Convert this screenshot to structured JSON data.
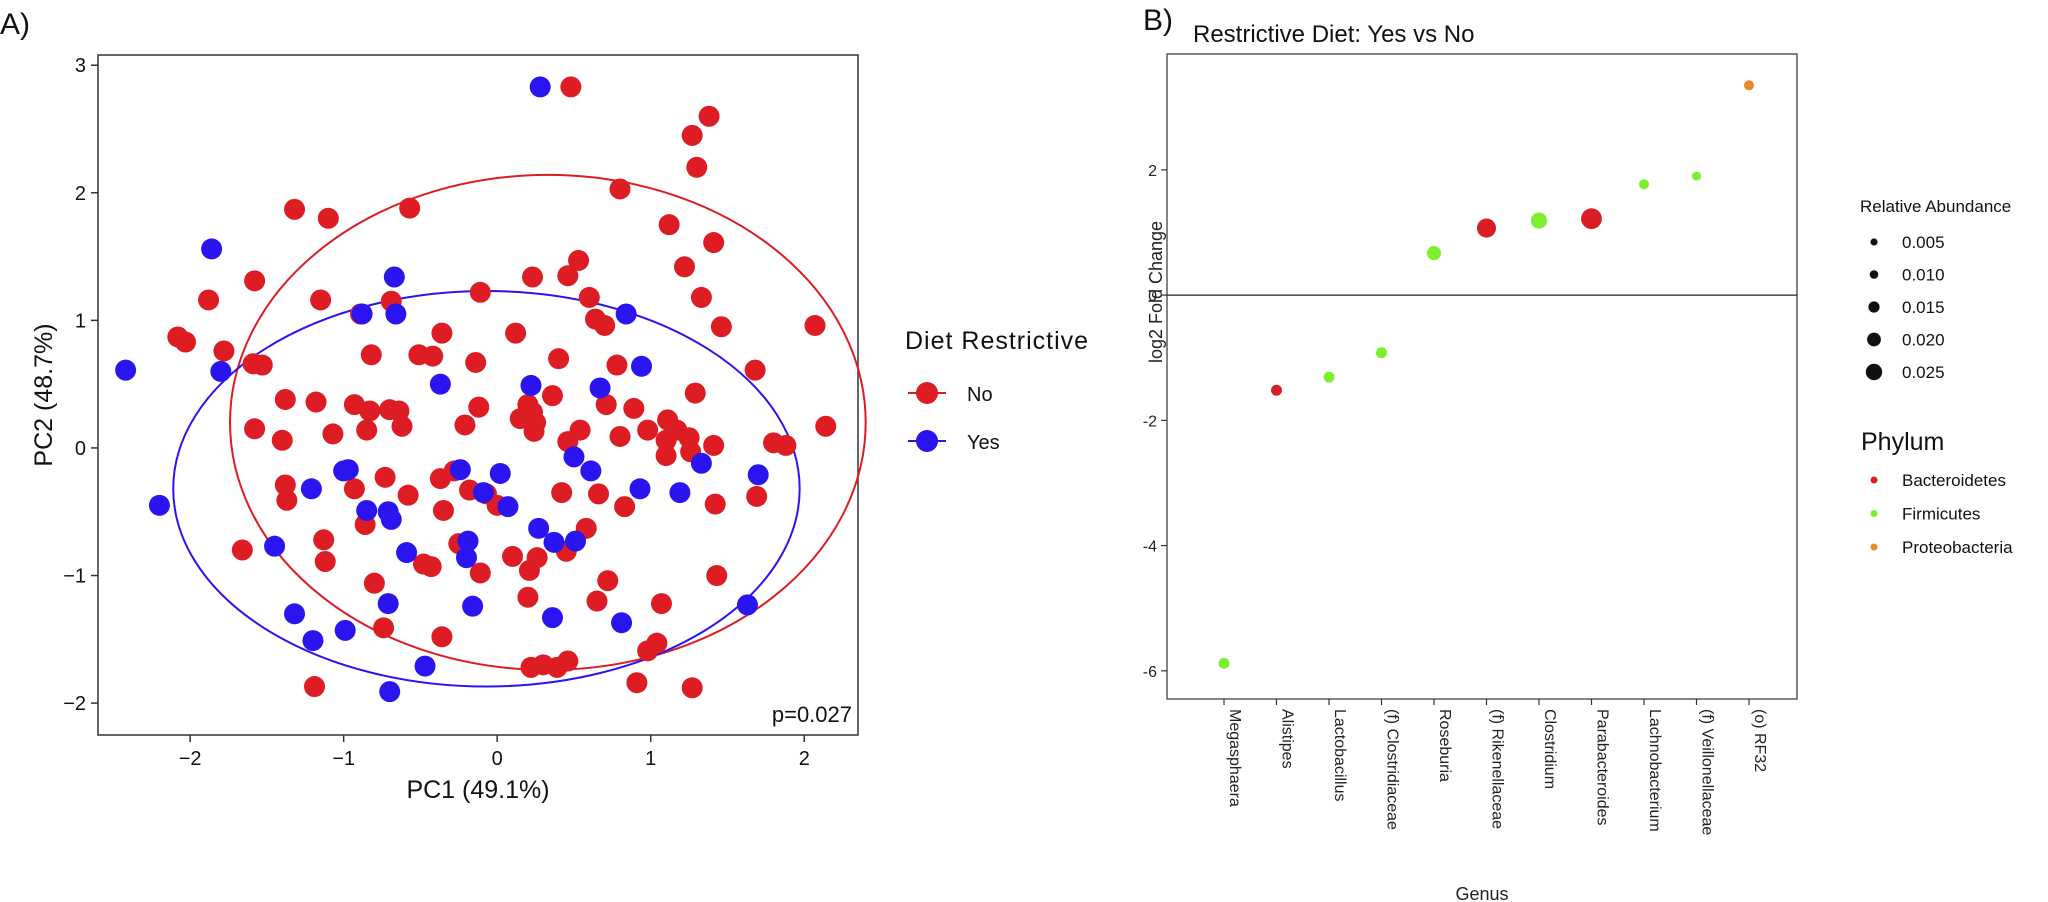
{
  "chart_data": [
    {
      "panel": "A)",
      "type": "scatter",
      "xlabel": "PC1 (49.1%)",
      "ylabel": "PC2 (48.7%)",
      "xlim": [
        -2.6,
        2.35
      ],
      "ylim": [
        -2.25,
        3.08
      ],
      "xticks": [
        -2,
        -1,
        0,
        1,
        2
      ],
      "yticks": [
        -2,
        -1,
        0,
        1,
        2,
        3
      ],
      "annotation": "p=0.027",
      "legend_title": "Diet Restrictive",
      "legend_items": [
        "No",
        "Yes"
      ],
      "colors": {
        "No": "#dd1c24",
        "Yes": "#2a14f0"
      },
      "ellipses": [
        {
          "group": "No",
          "cx": 0.33,
          "cy": 0.2,
          "rx": 2.07,
          "ry": 1.94
        },
        {
          "group": "Yes",
          "cx": -0.07,
          "cy": -0.32,
          "rx": 2.04,
          "ry": 1.55
        }
      ],
      "series": [
        {
          "name": "No",
          "points": [
            [
              0.48,
              2.83
            ],
            [
              1.38,
              2.6
            ],
            [
              1.27,
              2.45
            ],
            [
              1.3,
              2.2
            ],
            [
              0.8,
              2.03
            ],
            [
              -1.32,
              1.87
            ],
            [
              -1.1,
              1.8
            ],
            [
              -0.57,
              1.88
            ],
            [
              1.12,
              1.75
            ],
            [
              1.41,
              1.61
            ],
            [
              0.53,
              1.47
            ],
            [
              1.22,
              1.42
            ],
            [
              -1.58,
              1.31
            ],
            [
              0.23,
              1.34
            ],
            [
              0.46,
              1.35
            ],
            [
              -1.88,
              1.16
            ],
            [
              -1.15,
              1.16
            ],
            [
              -0.69,
              1.15
            ],
            [
              -0.11,
              1.22
            ],
            [
              1.33,
              1.18
            ],
            [
              -0.89,
              1.05
            ],
            [
              0.6,
              1.18
            ],
            [
              0.64,
              1.01
            ],
            [
              0.7,
              0.96
            ],
            [
              1.46,
              0.95
            ],
            [
              2.07,
              0.96
            ],
            [
              -2.08,
              0.87
            ],
            [
              -2.03,
              0.83
            ],
            [
              -0.36,
              0.9
            ],
            [
              0.12,
              0.9
            ],
            [
              -1.78,
              0.76
            ],
            [
              -1.59,
              0.66
            ],
            [
              -1.53,
              0.65
            ],
            [
              -0.82,
              0.73
            ],
            [
              -0.51,
              0.73
            ],
            [
              -0.42,
              0.72
            ],
            [
              -0.14,
              0.67
            ],
            [
              0.4,
              0.7
            ],
            [
              0.78,
              0.65
            ],
            [
              1.68,
              0.61
            ],
            [
              -1.38,
              0.38
            ],
            [
              -1.18,
              0.36
            ],
            [
              -0.93,
              0.34
            ],
            [
              -0.83,
              0.29
            ],
            [
              -0.7,
              0.3
            ],
            [
              -0.64,
              0.29
            ],
            [
              -0.12,
              0.32
            ],
            [
              0.2,
              0.34
            ],
            [
              0.23,
              0.28
            ],
            [
              0.36,
              0.41
            ],
            [
              0.15,
              0.23
            ],
            [
              0.25,
              0.2
            ],
            [
              0.71,
              0.34
            ],
            [
              0.89,
              0.31
            ],
            [
              1.11,
              0.22
            ],
            [
              1.17,
              0.14
            ],
            [
              1.29,
              0.43
            ],
            [
              0.8,
              0.09
            ],
            [
              0.98,
              0.14
            ],
            [
              1.1,
              0.06
            ],
            [
              1.25,
              0.08
            ],
            [
              1.41,
              0.02
            ],
            [
              1.8,
              0.04
            ],
            [
              1.88,
              0.02
            ],
            [
              2.14,
              0.17
            ],
            [
              -1.58,
              0.15
            ],
            [
              -1.4,
              0.06
            ],
            [
              -1.07,
              0.11
            ],
            [
              -0.85,
              0.14
            ],
            [
              -0.62,
              0.17
            ],
            [
              -0.21,
              0.18
            ],
            [
              0.24,
              0.13
            ],
            [
              0.46,
              0.05
            ],
            [
              0.54,
              0.14
            ],
            [
              1.1,
              -0.06
            ],
            [
              1.26,
              -0.03
            ],
            [
              -0.73,
              -0.23
            ],
            [
              -0.37,
              -0.24
            ],
            [
              -0.28,
              -0.18
            ],
            [
              -0.18,
              -0.33
            ],
            [
              -0.07,
              -0.36
            ],
            [
              -0.58,
              -0.37
            ],
            [
              -0.35,
              -0.49
            ],
            [
              0.0,
              -0.45
            ],
            [
              0.42,
              -0.35
            ],
            [
              0.66,
              -0.36
            ],
            [
              0.58,
              -0.63
            ],
            [
              0.83,
              -0.46
            ],
            [
              1.42,
              -0.44
            ],
            [
              1.69,
              -0.38
            ],
            [
              -1.38,
              -0.29
            ],
            [
              -1.37,
              -0.41
            ],
            [
              -0.93,
              -0.32
            ],
            [
              -0.86,
              -0.6
            ],
            [
              -1.66,
              -0.8
            ],
            [
              -1.13,
              -0.72
            ],
            [
              -1.12,
              -0.89
            ],
            [
              -0.48,
              -0.91
            ],
            [
              -0.43,
              -0.93
            ],
            [
              -0.25,
              -0.75
            ],
            [
              -0.11,
              -0.98
            ],
            [
              0.1,
              -0.85
            ],
            [
              0.21,
              -0.96
            ],
            [
              0.26,
              -0.86
            ],
            [
              0.45,
              -0.81
            ],
            [
              0.72,
              -1.04
            ],
            [
              1.43,
              -1.0
            ],
            [
              -0.8,
              -1.06
            ],
            [
              0.2,
              -1.17
            ],
            [
              0.65,
              -1.2
            ],
            [
              1.07,
              -1.22
            ],
            [
              -0.74,
              -1.41
            ],
            [
              -0.36,
              -1.48
            ],
            [
              0.98,
              -1.59
            ],
            [
              1.04,
              -1.53
            ],
            [
              0.22,
              -1.72
            ],
            [
              0.3,
              -1.7
            ],
            [
              0.39,
              -1.72
            ],
            [
              0.46,
              -1.67
            ],
            [
              0.91,
              -1.84
            ],
            [
              1.27,
              -1.88
            ],
            [
              -1.19,
              -1.87
            ]
          ]
        },
        {
          "name": "Yes",
          "points": [
            [
              0.28,
              2.83
            ],
            [
              -1.86,
              1.56
            ],
            [
              -2.42,
              0.61
            ],
            [
              -1.8,
              0.6
            ],
            [
              -0.88,
              1.05
            ],
            [
              -0.66,
              1.05
            ],
            [
              -0.67,
              1.34
            ],
            [
              0.84,
              1.05
            ],
            [
              0.94,
              0.64
            ],
            [
              -0.37,
              0.5
            ],
            [
              0.22,
              0.49
            ],
            [
              0.67,
              0.47
            ],
            [
              -1.0,
              -0.18
            ],
            [
              -0.97,
              -0.17
            ],
            [
              -0.24,
              -0.17
            ],
            [
              0.02,
              -0.2
            ],
            [
              0.5,
              -0.07
            ],
            [
              0.61,
              -0.18
            ],
            [
              0.93,
              -0.32
            ],
            [
              1.33,
              -0.12
            ],
            [
              1.7,
              -0.21
            ],
            [
              -2.2,
              -0.45
            ],
            [
              -1.21,
              -0.32
            ],
            [
              -0.85,
              -0.49
            ],
            [
              -0.71,
              -0.5
            ],
            [
              -0.69,
              -0.56
            ],
            [
              -0.09,
              -0.35
            ],
            [
              0.07,
              -0.46
            ],
            [
              1.19,
              -0.35
            ],
            [
              -1.45,
              -0.77
            ],
            [
              -0.59,
              -0.82
            ],
            [
              -0.19,
              -0.73
            ],
            [
              -0.2,
              -0.86
            ],
            [
              0.27,
              -0.63
            ],
            [
              0.37,
              -0.74
            ],
            [
              0.51,
              -0.73
            ],
            [
              -1.32,
              -1.3
            ],
            [
              -0.71,
              -1.22
            ],
            [
              -0.16,
              -1.24
            ],
            [
              0.36,
              -1.33
            ],
            [
              0.81,
              -1.37
            ],
            [
              -0.99,
              -1.43
            ],
            [
              -1.2,
              -1.51
            ],
            [
              -0.47,
              -1.71
            ],
            [
              -0.7,
              -1.91
            ],
            [
              1.63,
              -1.23
            ]
          ]
        }
      ]
    },
    {
      "panel": "B)",
      "type": "scatter",
      "title": "Restrictive Diet: Yes vs No",
      "xlabel": "Genus",
      "ylabel": "log2 Fold Change",
      "ylim": [
        -6.45,
        3.85
      ],
      "yticks": [
        -6,
        -4,
        -2,
        0,
        2
      ],
      "categories": [
        "Megasphaera",
        "Alistipes",
        "Lactobacillus",
        "(f) Clostridiaceae",
        "Roseburia",
        "(f) Rikenellaceae",
        "Clostridium",
        "Parabacteroides",
        "Lachnobacterium",
        "(f) Veillonellaceae",
        "(o) RF32"
      ],
      "values": [
        -5.88,
        -1.52,
        -1.31,
        -0.92,
        0.67,
        1.07,
        1.19,
        1.22,
        1.77,
        1.9,
        3.35
      ],
      "abundance": [
        0.004,
        0.004,
        0.004,
        0.004,
        0.009,
        0.02,
        0.013,
        0.025,
        0.003,
        0.002,
        0.003
      ],
      "phylum": [
        "Firmicutes",
        "Bacteroidetes",
        "Firmicutes",
        "Firmicutes",
        "Firmicutes",
        "Bacteroidetes",
        "Firmicutes",
        "Bacteroidetes",
        "Firmicutes",
        "Firmicutes",
        "Proteobacteria"
      ],
      "size_legend_title": "Relative Abundance",
      "size_legend": [
        "0.005",
        "0.010",
        "0.015",
        "0.020",
        "0.025"
      ],
      "color_legend_title": "Phylum",
      "color_legend": [
        "Bacteroidetes",
        "Firmicutes",
        "Proteobacteria"
      ],
      "colors": {
        "Bacteroidetes": "#d91e26",
        "Firmicutes": "#7cf02e",
        "Proteobacteria": "#e88a2c"
      }
    }
  ]
}
